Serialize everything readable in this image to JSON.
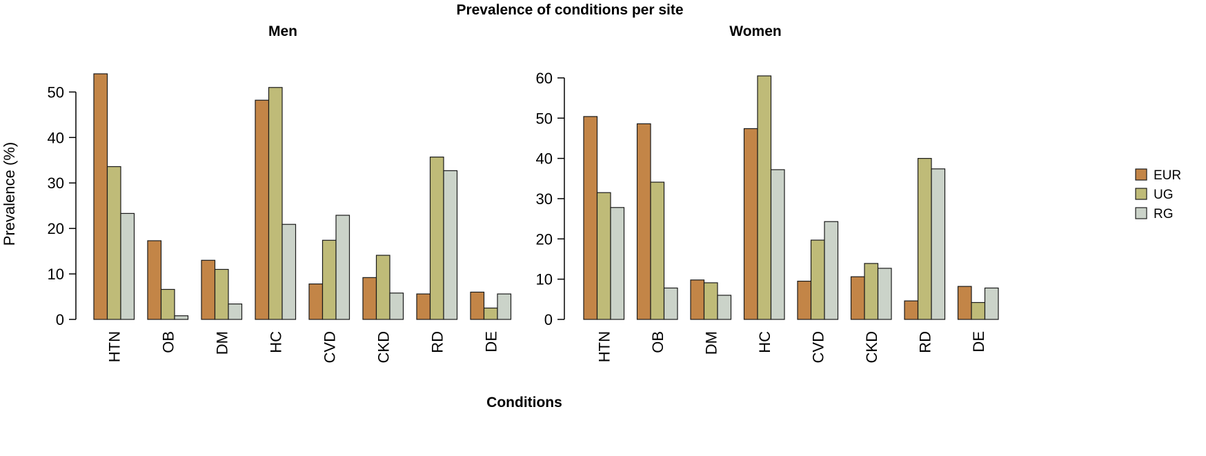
{
  "figure": {
    "title": "Prevalence of conditions per site",
    "xlabel": "Conditions",
    "ylabel": "Prevalence (%)"
  },
  "legend": {
    "items": [
      {
        "label": "EUR",
        "color": "#c38547"
      },
      {
        "label": "UG",
        "color": "#bfbb78"
      },
      {
        "label": "RG",
        "color": "#cbd3c9"
      }
    ]
  },
  "chart_data": [
    {
      "type": "bar",
      "title": "Men",
      "xlabel": "Conditions",
      "ylabel": "Prevalence (%)",
      "categories": [
        "HTN",
        "OB",
        "DM",
        "HC",
        "CVD",
        "CKD",
        "RD",
        "DE"
      ],
      "ylim": [
        0,
        54
      ],
      "yticks": [
        0,
        10,
        20,
        30,
        40,
        50
      ],
      "series": [
        {
          "name": "EUR",
          "color": "#c38547",
          "values": [
            54.0,
            17.3,
            13.0,
            48.2,
            7.8,
            9.2,
            5.6,
            6.0
          ]
        },
        {
          "name": "UG",
          "color": "#bfbb78",
          "values": [
            33.6,
            6.6,
            11.0,
            51.0,
            17.4,
            14.1,
            35.7,
            2.5
          ]
        },
        {
          "name": "RG",
          "color": "#cbd3c9",
          "values": [
            23.3,
            0.8,
            3.4,
            20.9,
            22.9,
            5.8,
            32.7,
            5.6
          ]
        }
      ]
    },
    {
      "type": "bar",
      "title": "Women",
      "xlabel": "Conditions",
      "ylabel": "",
      "categories": [
        "HTN",
        "OB",
        "DM",
        "HC",
        "CVD",
        "CKD",
        "RD",
        "DE"
      ],
      "ylim": [
        0,
        60.5
      ],
      "yticks": [
        0,
        10,
        20,
        30,
        40,
        50,
        60
      ],
      "series": [
        {
          "name": "EUR",
          "color": "#c38547",
          "values": [
            50.4,
            48.6,
            9.8,
            47.4,
            9.5,
            10.6,
            4.6,
            8.2
          ]
        },
        {
          "name": "UG",
          "color": "#bfbb78",
          "values": [
            31.5,
            34.1,
            9.1,
            60.5,
            19.7,
            13.9,
            40.0,
            4.2
          ]
        },
        {
          "name": "RG",
          "color": "#cbd3c9",
          "values": [
            27.8,
            7.8,
            6.0,
            37.2,
            24.3,
            12.7,
            37.4,
            7.8
          ]
        }
      ]
    }
  ]
}
